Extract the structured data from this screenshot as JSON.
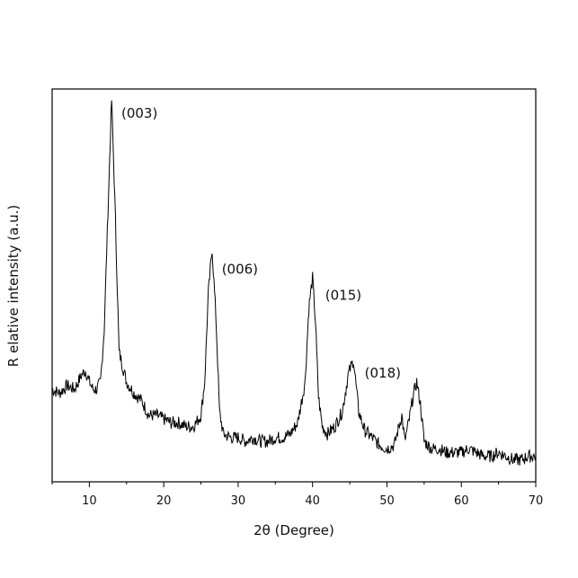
{
  "chart_data": {
    "type": "line",
    "title": "",
    "xlabel": "2θ (Degree)",
    "ylabel": "R elative intensity (a.u.)",
    "xlim": [
      5,
      70
    ],
    "ylim": [
      0,
      1
    ],
    "x_ticks": [
      "10",
      "20",
      "30",
      "40",
      "50",
      "60",
      "70"
    ],
    "y_ticks_shown": false,
    "grid": false,
    "legend": "none",
    "line_color": "#000000",
    "series": [
      {
        "x": [
          5,
          6,
          7,
          8,
          9,
          9.5,
          10,
          10.5,
          11,
          11.5,
          12,
          12.5,
          13,
          13.5,
          14,
          15,
          16,
          17,
          18,
          19,
          20,
          21,
          22,
          23,
          24,
          25,
          25.5,
          26,
          26.5,
          27,
          27.5,
          28,
          29,
          30,
          31,
          32,
          33,
          34,
          35,
          36,
          37,
          38,
          39,
          39.5,
          40,
          40.4,
          40.8,
          41.3,
          42,
          43,
          44,
          44.8,
          45.5,
          46.2,
          47,
          48,
          49,
          50,
          51,
          51.6,
          52,
          52.4,
          53,
          53.5,
          54,
          54.5,
          55,
          56,
          57,
          58,
          59,
          60,
          61,
          62,
          63,
          64,
          65,
          66,
          67,
          68,
          69,
          70
        ],
        "values": [
          0.22,
          0.21,
          0.23,
          0.22,
          0.26,
          0.27,
          0.24,
          0.22,
          0.22,
          0.24,
          0.38,
          0.7,
          1.0,
          0.68,
          0.32,
          0.24,
          0.21,
          0.19,
          0.15,
          0.15,
          0.14,
          0.13,
          0.13,
          0.12,
          0.12,
          0.15,
          0.24,
          0.48,
          0.6,
          0.42,
          0.16,
          0.1,
          0.09,
          0.09,
          0.08,
          0.09,
          0.08,
          0.08,
          0.09,
          0.09,
          0.1,
          0.13,
          0.24,
          0.44,
          0.52,
          0.4,
          0.2,
          0.12,
          0.1,
          0.12,
          0.16,
          0.26,
          0.3,
          0.16,
          0.11,
          0.09,
          0.07,
          0.06,
          0.07,
          0.12,
          0.15,
          0.08,
          0.14,
          0.2,
          0.24,
          0.18,
          0.08,
          0.06,
          0.06,
          0.05,
          0.05,
          0.05,
          0.06,
          0.05,
          0.04,
          0.04,
          0.05,
          0.04,
          0.03,
          0.03,
          0.04,
          0.04
        ]
      }
    ],
    "annotations": [
      {
        "text": "(003)",
        "x": 14.3,
        "y": 1.0
      },
      {
        "text": "(006)",
        "x": 27.8,
        "y": 0.58
      },
      {
        "text": "(015)",
        "x": 41.7,
        "y": 0.51
      },
      {
        "text": "(018)",
        "x": 47.0,
        "y": 0.3
      }
    ]
  }
}
